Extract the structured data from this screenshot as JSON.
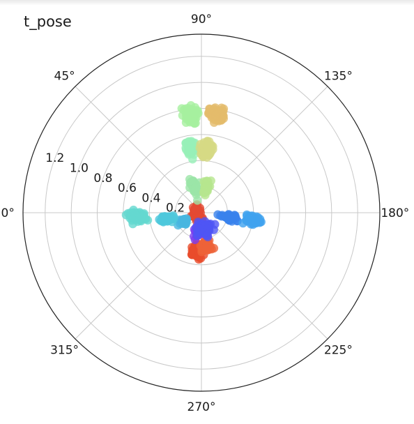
{
  "chart_data": {
    "type": "scatter",
    "projection": "polar",
    "title": "t_pose",
    "theta_direction": "clockwise",
    "theta_zero_location": "left",
    "theta_ticks": [
      0,
      45,
      90,
      135,
      180,
      225,
      270,
      315
    ],
    "theta_tick_labels": [
      "0°",
      "45°",
      "90°",
      "135°",
      "180°",
      "225°",
      "270°",
      "315°"
    ],
    "r_ticks": [
      0.2,
      0.4,
      0.6,
      0.8,
      1.0,
      1.2
    ],
    "r_tick_labels": [
      "0.2",
      "0.4",
      "0.6",
      "0.8",
      "1.0",
      "1.2"
    ],
    "r_label_angle": 22.5,
    "rlim": [
      0,
      1.37
    ],
    "grid": true,
    "colormap": "rainbow",
    "marker_alpha": 0.8,
    "clusters": [
      {
        "color": "#e34a33",
        "theta": 0,
        "r": 0.05,
        "spread_theta": 90,
        "spread_r": 0.03,
        "n": 40
      },
      {
        "color": "#e84c2c",
        "theta": 276,
        "r": 0.29,
        "spread_theta": 8,
        "spread_r": 0.05,
        "n": 70
      },
      {
        "color": "#ee6338",
        "theta": 262,
        "r": 0.26,
        "spread_theta": 9,
        "spread_r": 0.05,
        "n": 45
      },
      {
        "color": "#7a3df0",
        "theta": 278,
        "r": 0.15,
        "spread_theta": 12,
        "spread_r": 0.05,
        "n": 40
      },
      {
        "color": "#4f55f5",
        "theta": 256,
        "r": 0.13,
        "spread_theta": 22,
        "spread_r": 0.05,
        "n": 55
      },
      {
        "color": "#3a82ec",
        "theta": 190,
        "r": 0.22,
        "spread_theta": 6,
        "spread_r": 0.05,
        "n": 45
      },
      {
        "color": "#40a2ef",
        "theta": 188,
        "r": 0.4,
        "spread_theta": 5,
        "spread_r": 0.05,
        "n": 55
      },
      {
        "color": "#48b6e0",
        "theta": 334,
        "r": 0.15,
        "spread_theta": 9,
        "spread_r": 0.03,
        "n": 35
      },
      {
        "color": "#4fc8dc",
        "theta": 350,
        "r": 0.26,
        "spread_theta": 5,
        "spread_r": 0.05,
        "n": 55
      },
      {
        "color": "#64d8cf",
        "theta": 357,
        "r": 0.5,
        "spread_theta": 4,
        "spread_r": 0.06,
        "n": 70
      },
      {
        "color": "#9be5a8",
        "theta": 74,
        "r": 0.21,
        "spread_theta": 7,
        "spread_r": 0.05,
        "n": 40
      },
      {
        "color": "#b6e68f",
        "theta": 100,
        "r": 0.2,
        "spread_theta": 6,
        "spread_r": 0.05,
        "n": 40
      },
      {
        "color": "#97f0b8",
        "theta": 81,
        "r": 0.51,
        "spread_theta": 4,
        "spread_r": 0.06,
        "n": 70
      },
      {
        "color": "#d6d985",
        "theta": 95,
        "r": 0.49,
        "spread_theta": 4,
        "spread_r": 0.06,
        "n": 70
      },
      {
        "color": "#a6f09f",
        "theta": 83,
        "r": 0.75,
        "spread_theta": 4,
        "spread_r": 0.06,
        "n": 75
      },
      {
        "color": "#e3bb6c",
        "theta": 99,
        "r": 0.76,
        "spread_theta": 4,
        "spread_r": 0.05,
        "n": 75
      }
    ]
  }
}
